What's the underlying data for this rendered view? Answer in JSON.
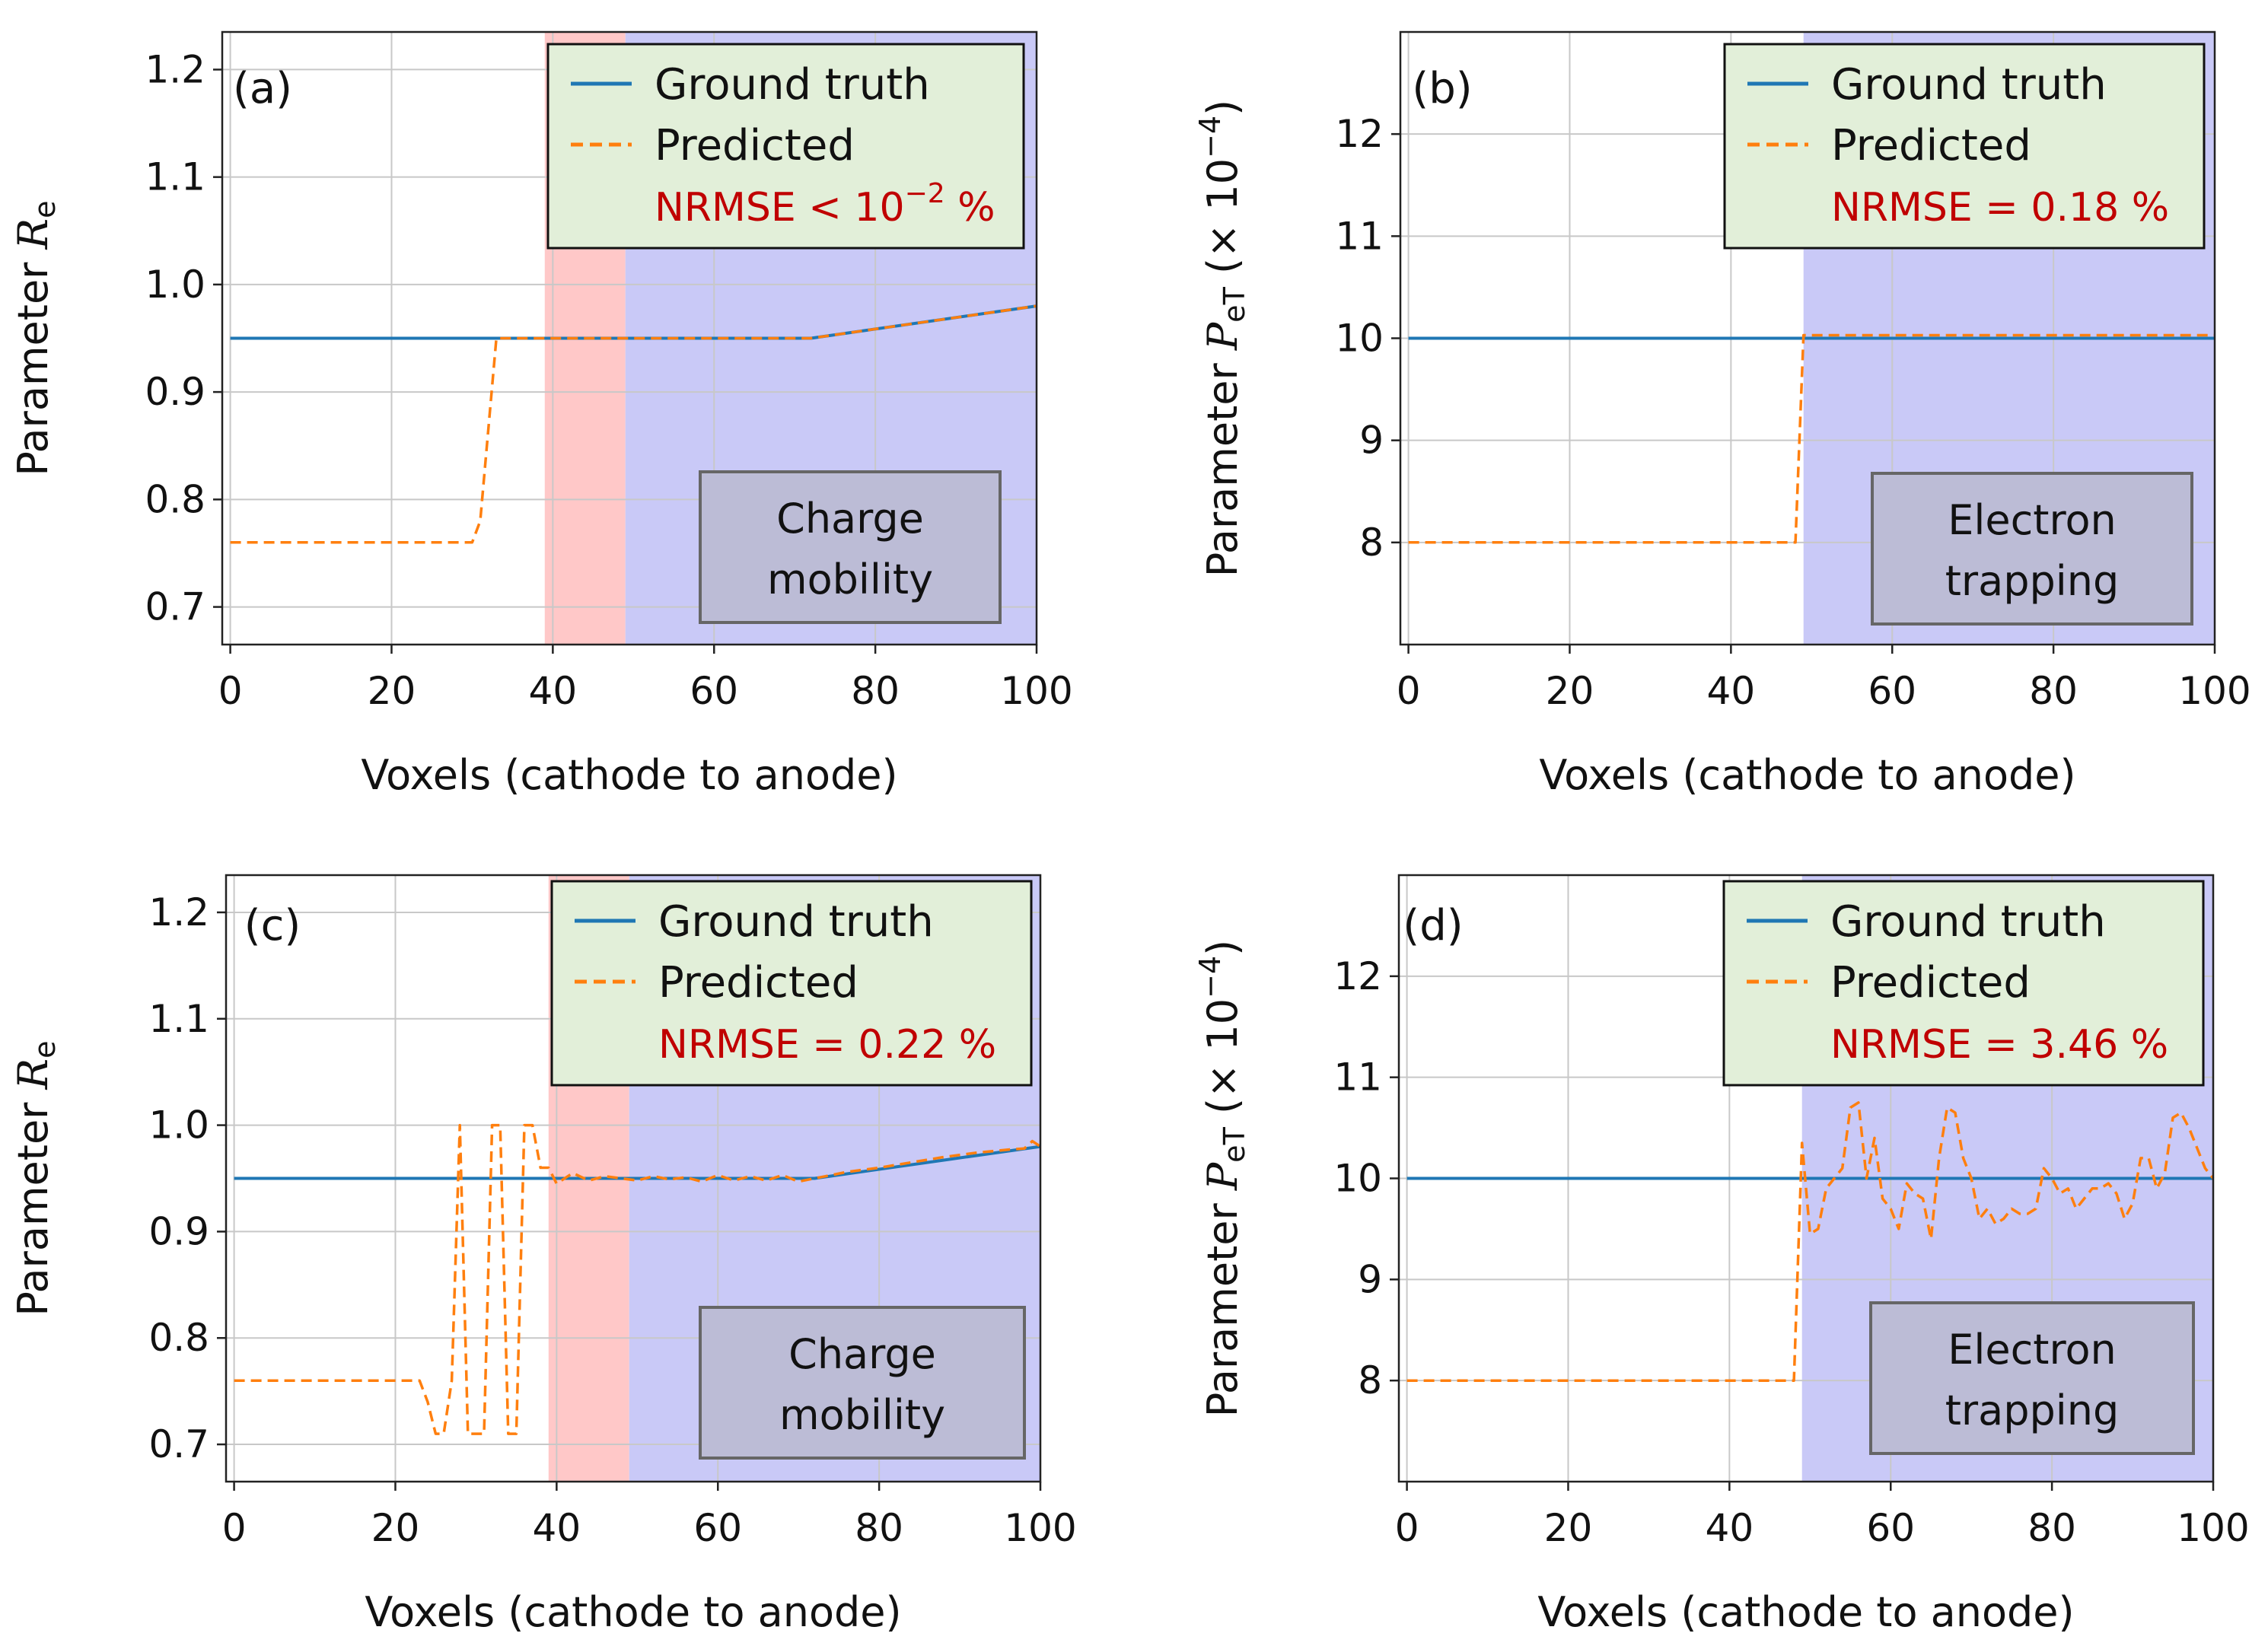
{
  "colors": {
    "ground_truth": "#1f77b4",
    "predicted": "#ff7f0e",
    "red_region": "#ffc8c8",
    "blue_region": "#c9c9f7",
    "legend_bg": "#e2efd9",
    "annot_bg": "#bcbcd6",
    "nrmse_text": "#c00000"
  },
  "chart_data": [
    {
      "type": "line",
      "panel_label": "(a)",
      "xlabel": "Voxels (cathode to anode)",
      "ylabel_prefix": "Parameter ",
      "ylabel_symbol": "R",
      "ylabel_sub": "e",
      "ylabel_suffix": "",
      "xlim": [
        -1,
        100
      ],
      "ylim": [
        0.665,
        1.235
      ],
      "xticks": [
        0,
        20,
        40,
        60,
        80,
        100
      ],
      "yticks": [
        0.7,
        0.8,
        0.9,
        1.0,
        1.1,
        1.2
      ],
      "ytick_labels": [
        "0.7",
        "0.8",
        "0.9",
        "1.0",
        "1.1",
        "1.2"
      ],
      "grid": true,
      "regions": [
        {
          "x0": 39,
          "x1": 49,
          "color": "red"
        },
        {
          "x0": 49,
          "x1": 100,
          "color": "blue"
        }
      ],
      "legend": {
        "ground_truth": "Ground truth",
        "predicted": "Predicted",
        "nrmse_prefix": "NRMSE < 10",
        "nrmse_sup": "−2",
        "nrmse_suffix": " %"
      },
      "annotation_lines": [
        "Charge",
        "mobility"
      ],
      "series": [
        {
          "name": "Ground truth",
          "x": [
            0,
            72,
            100
          ],
          "y": [
            0.95,
            0.95,
            0.98
          ]
        },
        {
          "name": "Predicted",
          "x": [
            0,
            30,
            31,
            33,
            72,
            100
          ],
          "y": [
            0.76,
            0.76,
            0.78,
            0.95,
            0.95,
            0.98
          ]
        }
      ]
    },
    {
      "type": "line",
      "panel_label": "(b)",
      "xlabel": "Voxels (cathode to anode)",
      "ylabel_prefix": "Parameter ",
      "ylabel_symbol": "P",
      "ylabel_sub": "eT",
      "ylabel_suffix": " (× 10",
      "ylabel_sup": "−4",
      "ylabel_end": ")",
      "xlim": [
        -1,
        100
      ],
      "ylim": [
        7.0,
        13.0
      ],
      "xticks": [
        0,
        20,
        40,
        60,
        80,
        100
      ],
      "yticks": [
        8,
        9,
        10,
        11,
        12
      ],
      "ytick_labels": [
        "8",
        "9",
        "10",
        "11",
        "12"
      ],
      "grid": true,
      "regions": [
        {
          "x0": 49,
          "x1": 100,
          "color": "blue"
        }
      ],
      "legend": {
        "ground_truth": "Ground truth",
        "predicted": "Predicted",
        "nrmse_prefix": "NRMSE = 0.18 %",
        "nrmse_sup": "",
        "nrmse_suffix": ""
      },
      "annotation_lines": [
        "Electron",
        "trapping"
      ],
      "series": [
        {
          "name": "Ground truth",
          "x": [
            0,
            100
          ],
          "y": [
            10,
            10
          ]
        },
        {
          "name": "Predicted",
          "x": [
            0,
            48,
            49,
            100
          ],
          "y": [
            8,
            8,
            10.03,
            10.03
          ]
        }
      ]
    },
    {
      "type": "line",
      "panel_label": "(c)",
      "xlabel": "Voxels (cathode to anode)",
      "ylabel_prefix": "Parameter ",
      "ylabel_symbol": "R",
      "ylabel_sub": "e",
      "ylabel_suffix": "",
      "xlim": [
        -1,
        100
      ],
      "ylim": [
        0.665,
        1.235
      ],
      "xticks": [
        0,
        20,
        40,
        60,
        80,
        100
      ],
      "yticks": [
        0.7,
        0.8,
        0.9,
        1.0,
        1.1,
        1.2
      ],
      "ytick_labels": [
        "0.7",
        "0.8",
        "0.9",
        "1.0",
        "1.1",
        "1.2"
      ],
      "grid": true,
      "regions": [
        {
          "x0": 39,
          "x1": 49,
          "color": "red"
        },
        {
          "x0": 49,
          "x1": 100,
          "color": "blue"
        }
      ],
      "legend": {
        "ground_truth": "Ground truth",
        "predicted": "Predicted",
        "nrmse_prefix": "NRMSE = 0.22 %",
        "nrmse_sup": "",
        "nrmse_suffix": ""
      },
      "annotation_lines": [
        "Charge",
        "mobility"
      ],
      "series": [
        {
          "name": "Ground truth",
          "x": [
            0,
            72,
            100
          ],
          "y": [
            0.95,
            0.95,
            0.98
          ]
        },
        {
          "name": "Predicted",
          "x": [
            0,
            23,
            24,
            25,
            26,
            27,
            28,
            29,
            30,
            31,
            32,
            33,
            34,
            35,
            36,
            37,
            38,
            39,
            40,
            42,
            44,
            46,
            48,
            50,
            52,
            54,
            56,
            58,
            60,
            62,
            64,
            66,
            68,
            70,
            72,
            76,
            80,
            84,
            88,
            92,
            96,
            98,
            99,
            100
          ],
          "y": [
            0.76,
            0.76,
            0.74,
            0.71,
            0.71,
            0.76,
            1.0,
            0.71,
            0.71,
            0.71,
            1.0,
            1.0,
            0.71,
            0.71,
            1.0,
            1.0,
            0.96,
            0.96,
            0.945,
            0.955,
            0.948,
            0.952,
            0.95,
            0.948,
            0.952,
            0.949,
            0.951,
            0.947,
            0.953,
            0.948,
            0.952,
            0.948,
            0.953,
            0.947,
            0.95,
            0.956,
            0.96,
            0.965,
            0.97,
            0.974,
            0.977,
            0.978,
            0.985,
            0.98
          ]
        }
      ]
    },
    {
      "type": "line",
      "panel_label": "(d)",
      "xlabel": "Voxels (cathode to anode)",
      "ylabel_prefix": "Parameter ",
      "ylabel_symbol": "P",
      "ylabel_sub": "eT",
      "ylabel_suffix": " (× 10",
      "ylabel_sup": "−4",
      "ylabel_end": ")",
      "xlim": [
        -1,
        100
      ],
      "ylim": [
        7.0,
        13.0
      ],
      "xticks": [
        0,
        20,
        40,
        60,
        80,
        100
      ],
      "yticks": [
        8,
        9,
        10,
        11,
        12
      ],
      "ytick_labels": [
        "8",
        "9",
        "10",
        "11",
        "12"
      ],
      "grid": true,
      "regions": [
        {
          "x0": 49,
          "x1": 100,
          "color": "blue"
        }
      ],
      "legend": {
        "ground_truth": "Ground truth",
        "predicted": "Predicted",
        "nrmse_prefix": "NRMSE = 3.46 %",
        "nrmse_sup": "",
        "nrmse_suffix": ""
      },
      "annotation_lines": [
        "Electron",
        "trapping"
      ],
      "series": [
        {
          "name": "Ground truth",
          "x": [
            0,
            100
          ],
          "y": [
            10,
            10
          ]
        },
        {
          "name": "Predicted",
          "x": [
            0,
            48,
            49,
            50,
            51,
            52,
            53,
            54,
            55,
            56,
            57,
            58,
            59,
            60,
            61,
            62,
            63,
            64,
            65,
            66,
            67,
            68,
            69,
            70,
            71,
            72,
            73,
            74,
            75,
            76,
            77,
            78,
            79,
            80,
            81,
            82,
            83,
            84,
            85,
            86,
            87,
            88,
            89,
            90,
            91,
            92,
            93,
            94,
            95,
            96,
            97,
            98,
            99,
            100
          ],
          "y": [
            8,
            8,
            10.35,
            9.45,
            9.5,
            9.9,
            10.0,
            10.1,
            10.7,
            10.75,
            10.0,
            10.4,
            9.8,
            9.7,
            9.5,
            9.95,
            9.85,
            9.8,
            9.4,
            10.2,
            10.7,
            10.65,
            10.2,
            10.0,
            9.6,
            9.7,
            9.55,
            9.6,
            9.7,
            9.65,
            9.65,
            9.7,
            10.1,
            10.0,
            9.85,
            9.9,
            9.7,
            9.8,
            9.9,
            9.9,
            9.95,
            9.85,
            9.6,
            9.75,
            10.2,
            10.2,
            9.9,
            10.05,
            10.6,
            10.65,
            10.5,
            10.3,
            10.1,
            10.0
          ]
        }
      ]
    }
  ]
}
